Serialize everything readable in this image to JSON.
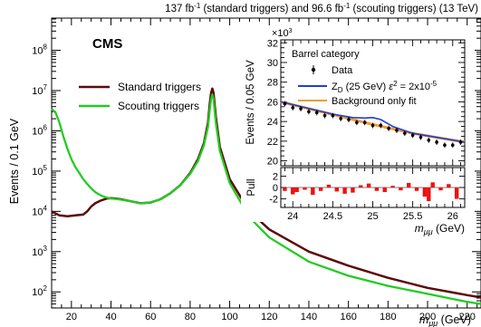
{
  "chart_data": [
    {
      "type": "line",
      "header": {
        "prefix": "137 fb",
        "exp1": "-1",
        "mid": " (standard triggers) and 96.6 fb",
        "exp2": "-1",
        "suffix": " (scouting triggers) (13 TeV)"
      },
      "experiment_label": "CMS",
      "ylabel": "Events / 0.1 GeV",
      "xlabel": {
        "sym": "m",
        "sub": "μμ",
        "unit": " (GeV)"
      },
      "xlim": [
        10,
        227
      ],
      "ylim_log10": [
        1.6,
        8.8
      ],
      "yscale": "log",
      "x_ticks": [
        20,
        40,
        60,
        80,
        100,
        120,
        140,
        160,
        180,
        200,
        220
      ],
      "y_ticks": [
        {
          "base": "10",
          "exp": "2",
          "log": 2
        },
        {
          "base": "10",
          "exp": "3",
          "log": 3
        },
        {
          "base": "10",
          "exp": "4",
          "log": 4
        },
        {
          "base": "10",
          "exp": "5",
          "log": 5
        },
        {
          "base": "10",
          "exp": "6",
          "log": 6
        },
        {
          "base": "10",
          "exp": "7",
          "log": 7
        },
        {
          "base": "10",
          "exp": "8",
          "log": 8
        }
      ],
      "legend_position": "middle-left",
      "series": [
        {
          "name": "Standard triggers",
          "color": "#5c0a0a",
          "x": [
            10,
            14,
            18,
            22,
            26,
            28,
            30,
            32,
            35,
            38,
            40,
            42,
            45,
            50,
            55,
            60,
            65,
            70,
            75,
            80,
            84,
            87,
            89,
            90,
            90.6,
            91.2,
            91.8,
            93,
            95,
            100,
            110,
            120,
            140,
            160,
            180,
            200,
            220,
            227
          ],
          "log10y": [
            4.0,
            3.9,
            3.88,
            3.9,
            3.92,
            4.0,
            4.12,
            4.2,
            4.27,
            4.32,
            4.33,
            4.32,
            4.3,
            4.25,
            4.2,
            4.22,
            4.3,
            4.45,
            4.65,
            4.95,
            5.3,
            5.7,
            6.2,
            6.7,
            6.95,
            7.05,
            6.95,
            6.35,
            5.6,
            4.8,
            4.0,
            3.55,
            3.0,
            2.65,
            2.35,
            2.1,
            1.92,
            1.86
          ]
        },
        {
          "name": "Scouting triggers",
          "color": "#22cc22",
          "x": [
            10,
            12,
            14,
            16,
            18,
            20,
            22,
            24,
            26,
            28,
            30,
            32,
            34,
            36,
            38,
            40,
            42,
            45,
            50,
            55,
            60,
            65,
            70,
            75,
            80,
            84,
            87,
            89,
            90,
            90.6,
            91.2,
            91.8,
            93,
            95,
            100,
            110,
            120,
            140,
            160,
            180,
            200,
            220,
            227
          ],
          "log10y": [
            6.55,
            6.45,
            6.2,
            5.85,
            5.55,
            5.3,
            5.1,
            4.95,
            4.8,
            4.68,
            4.57,
            4.48,
            4.42,
            4.37,
            4.34,
            4.32,
            4.31,
            4.29,
            4.25,
            4.2,
            4.22,
            4.3,
            4.45,
            4.65,
            4.93,
            5.25,
            5.65,
            6.1,
            6.55,
            6.8,
            6.9,
            6.8,
            6.2,
            5.5,
            4.7,
            3.85,
            3.35,
            2.75,
            2.4,
            2.15,
            1.95,
            1.75,
            1.7
          ]
        }
      ]
    },
    {
      "type": "scatter",
      "panel": "inset",
      "title": "Barrel category",
      "multiplier": {
        "base": "×10",
        "exp": "3"
      },
      "ylabel": "Events / 0.05 GeV",
      "pull_label": "Pull",
      "xlabel": {
        "sym": "m",
        "sub": "μμ",
        "unit": " (GeV)"
      },
      "xlim": [
        23.85,
        26.15
      ],
      "ylim": [
        19.5,
        32.3
      ],
      "pull_ylim": [
        -3.5,
        3.5
      ],
      "x_ticks": [
        24,
        24.5,
        25,
        25.5,
        26
      ],
      "y_ticks": [
        20,
        22,
        24,
        26,
        28,
        30,
        32
      ],
      "pull_ticks": [
        -2,
        0,
        2
      ],
      "legend": {
        "data": "Data",
        "signal": {
          "pre": "Z",
          "sub": "D",
          "mid": " (25 GeV) ",
          "eps": "ε",
          "eps_exp": "2",
          "eq": " = 2x10",
          "exp": "-5"
        },
        "fit": "Background only fit"
      },
      "colors": {
        "data": "#000000",
        "signal": "#1f3fd6",
        "fit": "#f29b33",
        "pull_bar": "#ee1111"
      },
      "fit": {
        "x": [
          23.85,
          24.5,
          25.0,
          25.5,
          26.15
        ],
        "y": [
          26.0,
          24.7,
          23.7,
          22.8,
          21.9
        ]
      },
      "signal": {
        "x": [
          23.85,
          24.5,
          24.75,
          24.9,
          25.0,
          25.1,
          25.25,
          25.5,
          26.15
        ],
        "y": [
          26.0,
          24.75,
          24.4,
          24.35,
          24.4,
          24.2,
          23.5,
          22.8,
          21.9
        ]
      },
      "data_points": {
        "x": [
          23.9,
          24.0,
          24.1,
          24.2,
          24.3,
          24.4,
          24.5,
          24.6,
          24.7,
          24.8,
          24.9,
          25.0,
          25.1,
          25.2,
          25.3,
          25.4,
          25.5,
          25.6,
          25.7,
          25.8,
          25.9,
          26.0,
          26.1
        ],
        "y": [
          25.8,
          25.4,
          25.3,
          25.0,
          24.9,
          24.6,
          24.6,
          24.3,
          24.2,
          23.9,
          23.9,
          23.6,
          23.6,
          23.3,
          23.1,
          22.8,
          22.6,
          22.4,
          22.1,
          21.9,
          21.6,
          21.6,
          21.9
        ]
      },
      "pull": {
        "x": [
          23.9,
          24.0,
          24.05,
          24.15,
          24.25,
          24.35,
          24.45,
          24.55,
          24.65,
          24.75,
          24.85,
          24.95,
          25.05,
          25.15,
          25.25,
          25.35,
          25.45,
          25.55,
          25.65,
          25.7,
          25.75,
          25.85,
          25.95,
          26.05
        ],
        "values": [
          -0.6,
          -1.2,
          -0.8,
          -0.4,
          -1.3,
          -0.6,
          0.5,
          -0.7,
          -1.1,
          -0.9,
          0.4,
          0.7,
          -0.6,
          -0.8,
          0.3,
          -0.5,
          0.8,
          -0.6,
          -1.6,
          -2.4,
          0.9,
          -0.5,
          0.6,
          -2.0
        ]
      }
    }
  ]
}
